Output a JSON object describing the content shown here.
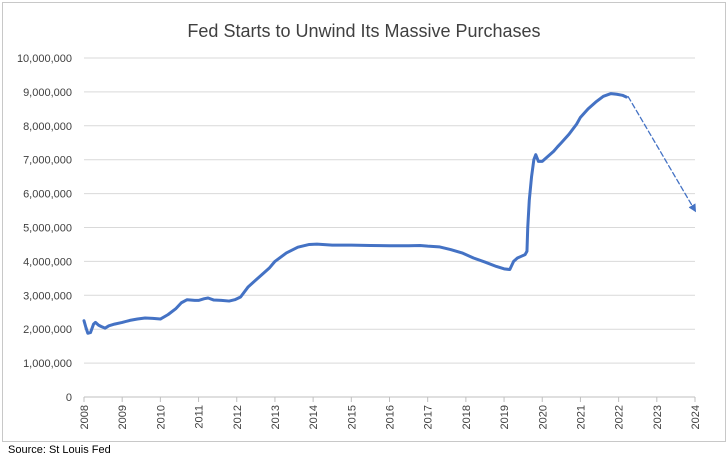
{
  "chart_data": {
    "type": "line",
    "title": "Fed Starts to Unwind Its Massive Purchases",
    "xlabel": "",
    "ylabel": "",
    "ylim": [
      0,
      10000000
    ],
    "xlim": [
      2008,
      2024
    ],
    "grid": true,
    "legend": "none",
    "y_ticks": [
      "0",
      "1,000,000",
      "2,000,000",
      "3,000,000",
      "4,000,000",
      "5,000,000",
      "6,000,000",
      "7,000,000",
      "8,000,000",
      "9,000,000",
      "10,000,000"
    ],
    "y_tick_values": [
      0,
      1000000,
      2000000,
      3000000,
      4000000,
      5000000,
      6000000,
      7000000,
      8000000,
      9000000,
      10000000
    ],
    "x_ticks": [
      "2008",
      "2009",
      "2010",
      "2011",
      "2012",
      "2013",
      "2014",
      "2015",
      "2016",
      "2017",
      "2018",
      "2019",
      "2020",
      "2021",
      "2022",
      "2023",
      "2024"
    ],
    "x_tick_values": [
      2008,
      2009,
      2010,
      2011,
      2012,
      2013,
      2014,
      2015,
      2016,
      2017,
      2018,
      2019,
      2020,
      2021,
      2022,
      2023,
      2024
    ],
    "series": [
      {
        "style": "solid",
        "color": "#4472C4",
        "points": [
          [
            2008.0,
            2250000
          ],
          [
            2008.05,
            2050000
          ],
          [
            2008.1,
            1880000
          ],
          [
            2008.17,
            1900000
          ],
          [
            2008.25,
            2150000
          ],
          [
            2008.3,
            2200000
          ],
          [
            2008.38,
            2120000
          ],
          [
            2008.45,
            2080000
          ],
          [
            2008.55,
            2030000
          ],
          [
            2008.65,
            2100000
          ],
          [
            2008.8,
            2150000
          ],
          [
            2009.0,
            2200000
          ],
          [
            2009.2,
            2260000
          ],
          [
            2009.4,
            2300000
          ],
          [
            2009.6,
            2330000
          ],
          [
            2009.8,
            2320000
          ],
          [
            2010.0,
            2300000
          ],
          [
            2010.2,
            2430000
          ],
          [
            2010.4,
            2600000
          ],
          [
            2010.55,
            2780000
          ],
          [
            2010.7,
            2870000
          ],
          [
            2010.9,
            2850000
          ],
          [
            2011.0,
            2850000
          ],
          [
            2011.15,
            2900000
          ],
          [
            2011.25,
            2920000
          ],
          [
            2011.4,
            2860000
          ],
          [
            2011.6,
            2850000
          ],
          [
            2011.8,
            2830000
          ],
          [
            2011.95,
            2870000
          ],
          [
            2012.1,
            2950000
          ],
          [
            2012.3,
            3250000
          ],
          [
            2012.6,
            3550000
          ],
          [
            2012.85,
            3800000
          ],
          [
            2013.0,
            4000000
          ],
          [
            2013.3,
            4250000
          ],
          [
            2013.6,
            4420000
          ],
          [
            2013.9,
            4500000
          ],
          [
            2014.1,
            4510000
          ],
          [
            2014.5,
            4480000
          ],
          [
            2015.0,
            4480000
          ],
          [
            2015.5,
            4470000
          ],
          [
            2016.0,
            4460000
          ],
          [
            2016.5,
            4460000
          ],
          [
            2016.8,
            4470000
          ],
          [
            2017.0,
            4450000
          ],
          [
            2017.3,
            4430000
          ],
          [
            2017.6,
            4350000
          ],
          [
            2017.9,
            4250000
          ],
          [
            2018.2,
            4100000
          ],
          [
            2018.5,
            3980000
          ],
          [
            2018.8,
            3850000
          ],
          [
            2019.0,
            3780000
          ],
          [
            2019.15,
            3760000
          ],
          [
            2019.25,
            4000000
          ],
          [
            2019.35,
            4100000
          ],
          [
            2019.45,
            4150000
          ],
          [
            2019.55,
            4200000
          ],
          [
            2019.6,
            4300000
          ],
          [
            2019.62,
            5000000
          ],
          [
            2019.66,
            5800000
          ],
          [
            2019.72,
            6500000
          ],
          [
            2019.78,
            7000000
          ],
          [
            2019.83,
            7150000
          ],
          [
            2019.9,
            6950000
          ],
          [
            2020.0,
            6950000
          ],
          [
            2020.1,
            7050000
          ],
          [
            2020.2,
            7150000
          ],
          [
            2020.3,
            7250000
          ],
          [
            2020.4,
            7380000
          ],
          [
            2020.5,
            7500000
          ],
          [
            2020.7,
            7750000
          ],
          [
            2020.9,
            8050000
          ],
          [
            2021.0,
            8250000
          ],
          [
            2021.2,
            8500000
          ],
          [
            2021.4,
            8700000
          ],
          [
            2021.6,
            8870000
          ],
          [
            2021.8,
            8950000
          ],
          [
            2021.95,
            8930000
          ],
          [
            2022.1,
            8900000
          ],
          [
            2022.2,
            8850000
          ]
        ]
      },
      {
        "style": "dashed",
        "color": "#4472C4",
        "points": [
          [
            2022.25,
            8860000
          ],
          [
            2024.0,
            5500000
          ]
        ]
      }
    ],
    "annotations": []
  },
  "source_note": "Source: St Louis Fed"
}
